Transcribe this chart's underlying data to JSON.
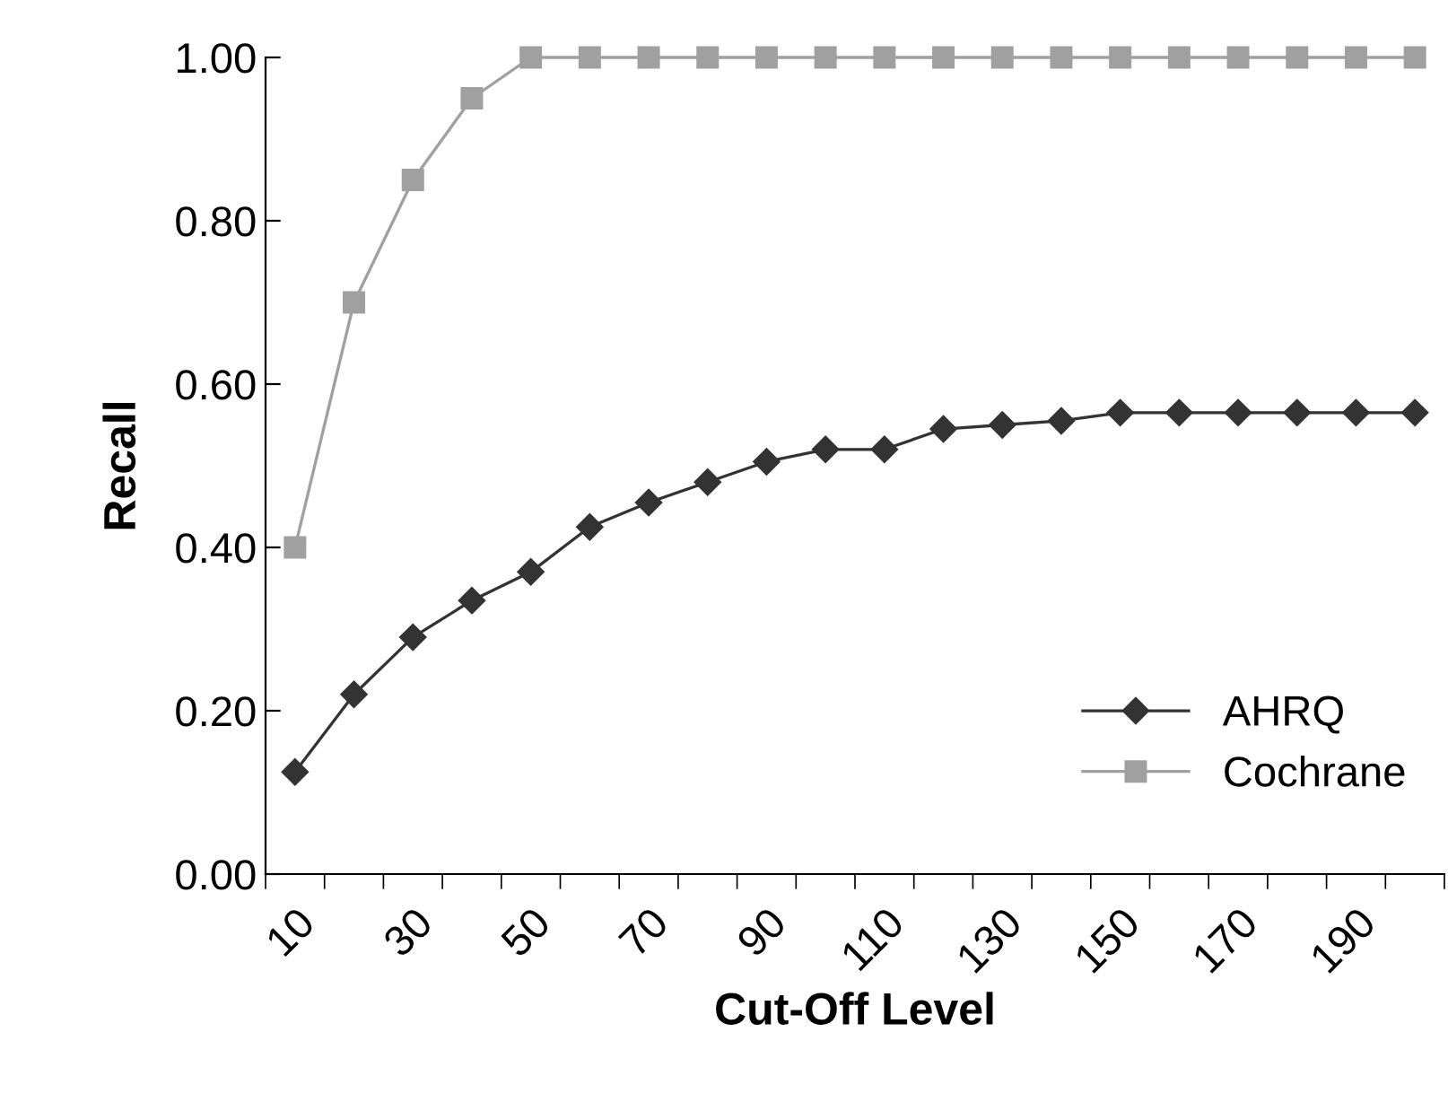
{
  "chart_data": {
    "type": "line",
    "xlabel": "Cut-Off Level",
    "ylabel": "Recall",
    "categories": [
      "10",
      null,
      "30",
      null,
      "50",
      null,
      "70",
      null,
      "90",
      null,
      "110",
      null,
      "130",
      null,
      "150",
      null,
      "170",
      null,
      "190",
      null
    ],
    "series": [
      {
        "name": "AHRQ",
        "color": "#333333",
        "marker": "diamond",
        "values": [
          0.125,
          0.22,
          0.29,
          0.335,
          0.37,
          0.425,
          0.455,
          0.48,
          0.505,
          0.52,
          0.52,
          0.545,
          0.55,
          0.555,
          0.565,
          0.565,
          0.565,
          0.565,
          0.565,
          0.565
        ]
      },
      {
        "name": "Cochrane",
        "color": "#a0a0a0",
        "marker": "square",
        "values": [
          0.4,
          0.7,
          0.85,
          0.95,
          1.0,
          1.0,
          1.0,
          1.0,
          1.0,
          1.0,
          1.0,
          1.0,
          1.0,
          1.0,
          1.0,
          1.0,
          1.0,
          1.0,
          1.0,
          1.0
        ]
      }
    ],
    "ylim": [
      0,
      1
    ],
    "yticks": [
      {
        "value": 0,
        "label": "0.00"
      },
      {
        "value": 0.2,
        "label": "0.20"
      },
      {
        "value": 0.4,
        "label": "0.40"
      },
      {
        "value": 0.6,
        "label": "0.60"
      },
      {
        "value": 0.8,
        "label": "0.80"
      },
      {
        "value": 1.0,
        "label": "1.00"
      }
    ],
    "grid": false,
    "legend": "bottom right"
  }
}
